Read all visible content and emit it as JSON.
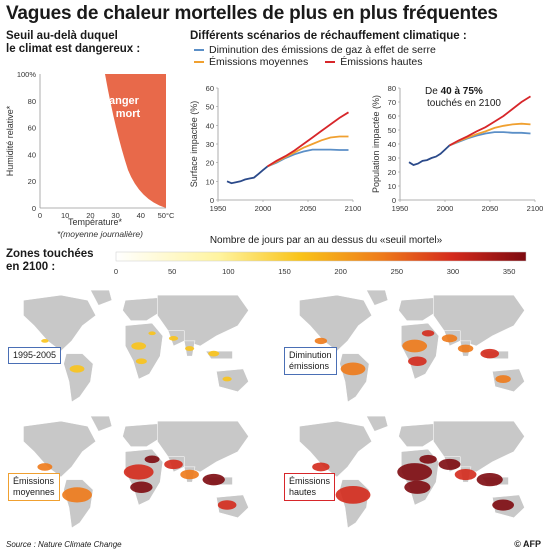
{
  "title": "Vagues de chaleur mortelles de plus en plus fréquentes",
  "left_panel": {
    "heading_line1": "Seuil au-delà duquel",
    "heading_line2": "le climat est dangereux :",
    "danger_label_1": "Danger",
    "danger_label_2": "de mort",
    "ylabel": "Humidité relative*",
    "xlabel": "Température*",
    "note": "*(moyenne journalière)",
    "x_ticks": [
      "0",
      "10",
      "20",
      "30",
      "40",
      "50°C"
    ],
    "y_ticks": [
      "100%",
      "80",
      "60",
      "40",
      "20",
      "0"
    ],
    "danger_color": "#e8694a"
  },
  "right_panel": {
    "heading": "Différents scénarios de réchauffement climatique :",
    "legend": [
      {
        "label": "Diminution des émissions de gaz à effet de serre",
        "color": "#5b8fc7"
      },
      {
        "label": "Émissions moyennes",
        "color": "#f0a030"
      },
      {
        "label": "Émissions hautes",
        "color": "#d7262a"
      }
    ],
    "annotation_line1_pre": "De ",
    "annotation_bold": "40 à 75%",
    "annotation_line2": "touchés en 2100"
  },
  "chart_data": [
    {
      "type": "line",
      "ylabel": "Surface impactée (%)",
      "x_ticks": [
        "1950",
        "2000",
        "2050",
        "2100"
      ],
      "y_ticks": [
        "0",
        "10",
        "20",
        "30",
        "40",
        "50",
        "60"
      ],
      "ylim": [
        0,
        60
      ],
      "xlim": [
        1950,
        2100
      ],
      "historical": {
        "x": [
          1960,
          1965,
          1970,
          1975,
          1980,
          1985,
          1990,
          1995,
          2000,
          2005
        ],
        "y": [
          10,
          9,
          9.5,
          10,
          11,
          11.5,
          12,
          14,
          16,
          18
        ]
      },
      "series": [
        {
          "name": "Diminution des émissions de gaz à effet de serre",
          "color": "#5b8fc7",
          "x": [
            2005,
            2015,
            2025,
            2035,
            2045,
            2055,
            2065,
            2075,
            2085,
            2095
          ],
          "y": [
            18,
            20,
            22.5,
            24.5,
            26,
            27,
            27,
            27,
            26.8,
            26.8
          ]
        },
        {
          "name": "Émissions moyennes",
          "color": "#f0a030",
          "x": [
            2005,
            2015,
            2025,
            2035,
            2045,
            2055,
            2065,
            2075,
            2085,
            2095
          ],
          "y": [
            18,
            20.5,
            23,
            25.5,
            28,
            30,
            32,
            33.5,
            34,
            34
          ]
        },
        {
          "name": "Émissions hautes",
          "color": "#d7262a",
          "x": [
            2005,
            2015,
            2025,
            2035,
            2045,
            2055,
            2065,
            2075,
            2085,
            2095
          ],
          "y": [
            18,
            21,
            23.5,
            26.5,
            30,
            33.5,
            37,
            40.5,
            44,
            47
          ]
        }
      ]
    },
    {
      "type": "line",
      "ylabel": "Population impactée (%)",
      "x_ticks": [
        "1950",
        "2000",
        "2050",
        "2100"
      ],
      "y_ticks": [
        "0",
        "10",
        "20",
        "30",
        "40",
        "50",
        "60",
        "70",
        "80"
      ],
      "ylim": [
        0,
        80
      ],
      "xlim": [
        1950,
        2100
      ],
      "historical": {
        "x": [
          1960,
          1965,
          1970,
          1975,
          1980,
          1985,
          1990,
          1995,
          2000,
          2005
        ],
        "y": [
          27,
          25,
          26,
          28,
          28.5,
          30,
          31,
          33,
          36,
          39
        ]
      },
      "series": [
        {
          "name": "Diminution des émissions de gaz à effet de serre",
          "color": "#5b8fc7",
          "x": [
            2005,
            2015,
            2025,
            2035,
            2045,
            2055,
            2065,
            2075,
            2085,
            2095
          ],
          "y": [
            39,
            41.5,
            44,
            46,
            47.5,
            48.5,
            48.5,
            48,
            48,
            47.5
          ]
        },
        {
          "name": "Émissions moyennes",
          "color": "#f0a030",
          "x": [
            2005,
            2015,
            2025,
            2035,
            2045,
            2055,
            2065,
            2075,
            2085,
            2095
          ],
          "y": [
            39,
            42,
            44.5,
            47,
            49,
            51.5,
            53,
            54,
            54.5,
            54
          ]
        },
        {
          "name": "Émissions hautes",
          "color": "#d7262a",
          "x": [
            2005,
            2015,
            2025,
            2035,
            2045,
            2055,
            2065,
            2075,
            2085,
            2095
          ],
          "y": [
            39,
            42.5,
            45.5,
            49,
            52,
            56,
            60,
            65,
            70,
            74
          ]
        }
      ]
    }
  ],
  "maps_section": {
    "heading_line1": "Zones touchées",
    "heading_line2": "en 2100 :",
    "colorbar_title": "Nombre de jours par an au dessus du «seuil mortel»",
    "colorbar_ticks": [
      "0",
      "50",
      "100",
      "150",
      "200",
      "250",
      "300",
      "350"
    ],
    "maps": [
      {
        "label": "1995-2005",
        "border_color": "#4a6fb5",
        "intensity": 0.2
      },
      {
        "label": "Diminution\némissions",
        "border_color": "#4a6fb5",
        "intensity": 0.6
      },
      {
        "label": "Émissions\nmoyennes",
        "border_color": "#f0a030",
        "intensity": 0.8
      },
      {
        "label": "Émissions\nhautes",
        "border_color": "#d7262a",
        "intensity": 1.0
      }
    ]
  },
  "source": "Source : Nature Climate Change",
  "agency": "© AFP"
}
